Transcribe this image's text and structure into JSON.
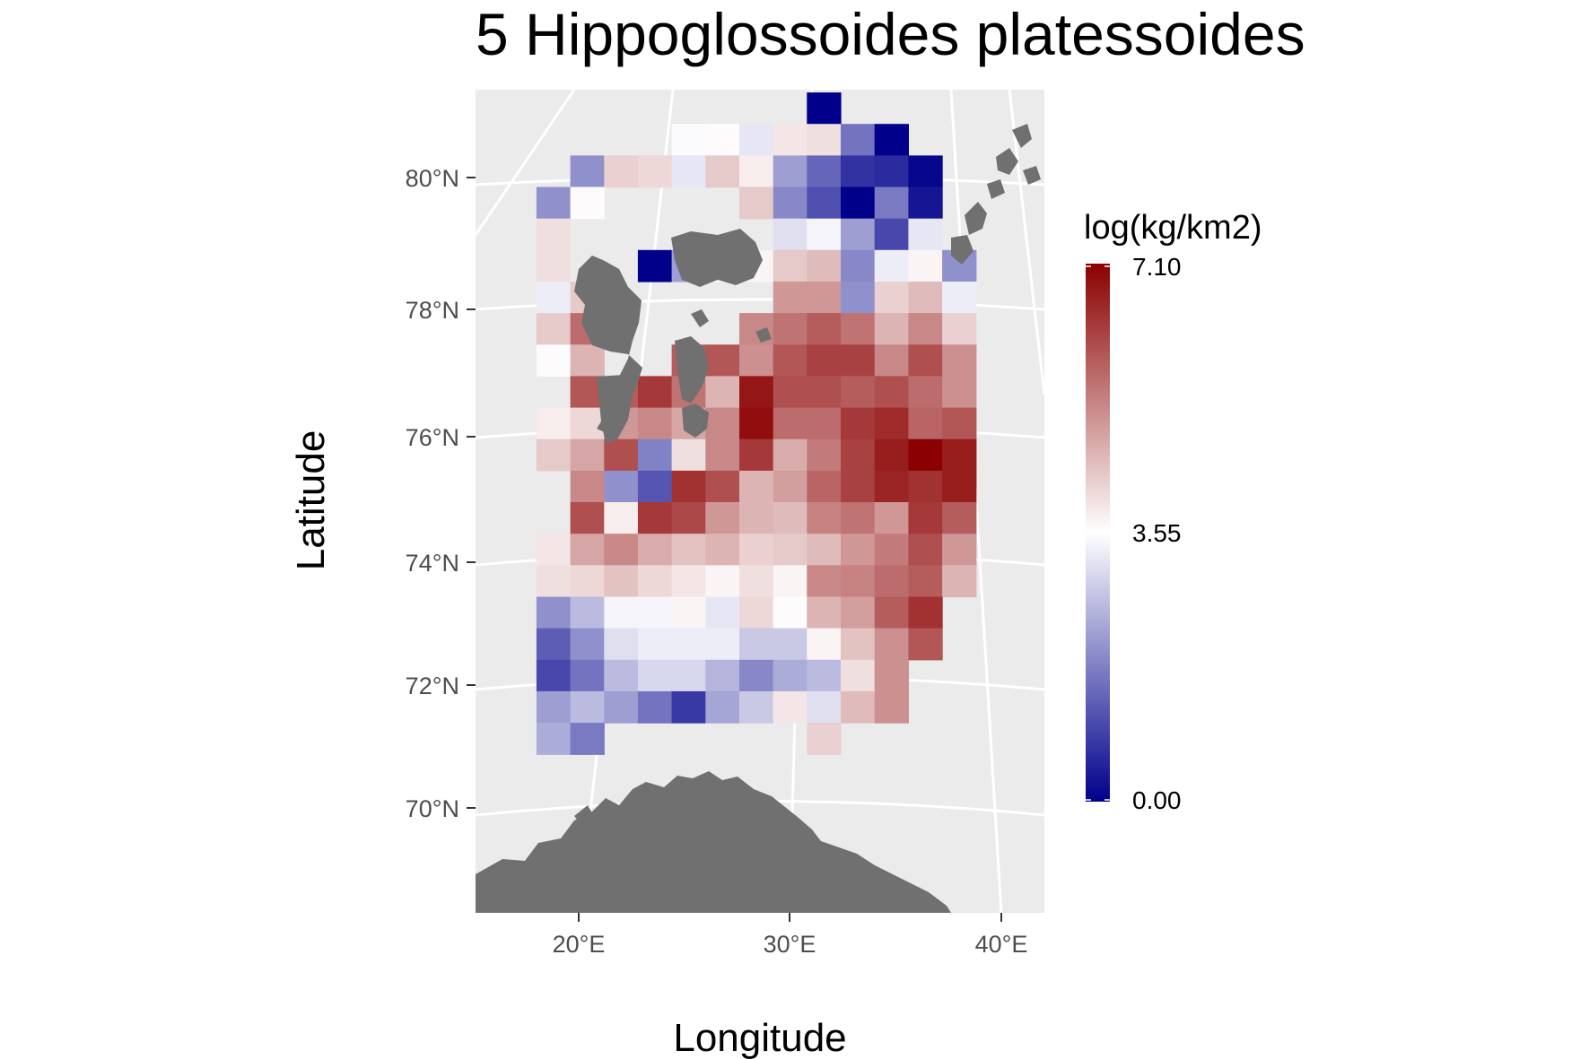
{
  "title": "5 Hippoglossoides platessoides",
  "x_axis_title": "Longitude",
  "y_axis_title": "Latitude",
  "x_ticks": [
    "20°E",
    "30°E",
    "40°E"
  ],
  "y_ticks": [
    "80°N",
    "78°N",
    "76°N",
    "74°N",
    "72°N",
    "70°N"
  ],
  "legend": {
    "title": "log(kg/km2)",
    "labels": [
      "7.10",
      "3.55",
      "0.00"
    ],
    "values": [
      7.1,
      3.55,
      0.0
    ],
    "color_low": "#00008B",
    "color_mid": "#FFFFFF",
    "color_high": "#8B0000"
  },
  "colors": {
    "panel_background": "#EBEBEB",
    "graticule": "#FFFFFF",
    "land": "#707070"
  },
  "chart_data": {
    "type": "heatmap",
    "title": "5 Hippoglossoides platessoides",
    "xlabel": "Longitude",
    "ylabel": "Latitude",
    "value_range": [
      0.0,
      7.1
    ],
    "lon_step": 1.6,
    "lat_step": 0.5,
    "cells": [
      [
        31.6,
        81.1,
        0.0
      ],
      [
        25.2,
        80.6,
        3.5
      ],
      [
        26.8,
        80.6,
        3.6
      ],
      [
        28.4,
        80.6,
        3.2
      ],
      [
        30.0,
        80.6,
        3.9
      ],
      [
        31.6,
        80.6,
        4.0
      ],
      [
        33.2,
        80.6,
        1.6
      ],
      [
        34.8,
        80.6,
        0.0
      ],
      [
        20.4,
        80.1,
        2.0
      ],
      [
        22.0,
        80.1,
        4.2
      ],
      [
        23.6,
        80.1,
        4.1
      ],
      [
        25.2,
        80.1,
        3.2
      ],
      [
        26.8,
        80.1,
        4.3
      ],
      [
        28.4,
        80.1,
        3.8
      ],
      [
        30.0,
        80.1,
        2.2
      ],
      [
        31.6,
        80.1,
        1.4
      ],
      [
        33.2,
        80.1,
        0.7
      ],
      [
        34.8,
        80.1,
        0.6
      ],
      [
        36.4,
        80.1,
        0.1
      ],
      [
        18.8,
        79.6,
        2.0
      ],
      [
        20.4,
        79.6,
        3.6
      ],
      [
        28.4,
        79.6,
        4.3
      ],
      [
        30.0,
        79.6,
        1.9
      ],
      [
        31.6,
        79.6,
        1.1
      ],
      [
        33.2,
        79.6,
        0.0
      ],
      [
        34.8,
        79.6,
        1.7
      ],
      [
        36.4,
        79.6,
        0.3
      ],
      [
        18.8,
        79.1,
        4.0
      ],
      [
        30.0,
        79.1,
        3.1
      ],
      [
        31.6,
        79.1,
        3.4
      ],
      [
        33.2,
        79.1,
        2.2
      ],
      [
        34.8,
        79.1,
        1.0
      ],
      [
        36.4,
        79.1,
        3.2
      ],
      [
        18.8,
        78.6,
        4.0
      ],
      [
        23.6,
        78.6,
        0.0
      ],
      [
        25.2,
        78.6,
        2.2
      ],
      [
        26.8,
        78.6,
        3.5
      ],
      [
        28.4,
        78.6,
        3.7
      ],
      [
        30.0,
        78.6,
        4.3
      ],
      [
        31.6,
        78.6,
        4.5
      ],
      [
        33.2,
        78.6,
        1.9
      ],
      [
        34.8,
        78.6,
        3.3
      ],
      [
        36.4,
        78.6,
        3.7
      ],
      [
        38.0,
        78.6,
        2.0
      ],
      [
        18.8,
        78.1,
        3.3
      ],
      [
        20.4,
        78.1,
        4.3
      ],
      [
        30.0,
        78.1,
        5.0
      ],
      [
        31.6,
        78.1,
        5.0
      ],
      [
        33.2,
        78.1,
        2.0
      ],
      [
        34.8,
        78.1,
        4.2
      ],
      [
        36.4,
        78.1,
        4.5
      ],
      [
        38.0,
        78.1,
        3.3
      ],
      [
        18.8,
        77.6,
        4.3
      ],
      [
        20.4,
        77.6,
        5.6
      ],
      [
        28.4,
        77.6,
        5.2
      ],
      [
        30.0,
        77.6,
        5.5
      ],
      [
        31.6,
        77.6,
        5.8
      ],
      [
        33.2,
        77.6,
        5.5
      ],
      [
        34.8,
        77.6,
        4.6
      ],
      [
        36.4,
        77.6,
        5.2
      ],
      [
        38.0,
        77.6,
        4.2
      ],
      [
        18.8,
        77.1,
        3.6
      ],
      [
        20.4,
        77.1,
        4.6
      ],
      [
        25.2,
        77.1,
        5.8
      ],
      [
        26.8,
        77.1,
        5.9
      ],
      [
        28.4,
        77.1,
        5.1
      ],
      [
        30.0,
        77.1,
        5.9
      ],
      [
        31.6,
        77.1,
        6.2
      ],
      [
        33.2,
        77.1,
        6.2
      ],
      [
        34.8,
        77.1,
        5.2
      ],
      [
        36.4,
        77.1,
        6.0
      ],
      [
        38.0,
        77.1,
        5.1
      ],
      [
        20.4,
        76.6,
        5.9
      ],
      [
        22.0,
        76.6,
        5.8
      ],
      [
        23.6,
        76.6,
        6.3
      ],
      [
        25.2,
        76.6,
        5.5
      ],
      [
        26.8,
        76.6,
        4.6
      ],
      [
        28.4,
        76.6,
        6.8
      ],
      [
        30.0,
        76.6,
        6.0
      ],
      [
        31.6,
        76.6,
        6.0
      ],
      [
        33.2,
        76.6,
        5.8
      ],
      [
        34.8,
        76.6,
        6.0
      ],
      [
        36.4,
        76.6,
        5.6
      ],
      [
        38.0,
        76.6,
        5.1
      ],
      [
        18.8,
        76.1,
        3.8
      ],
      [
        20.4,
        76.1,
        4.1
      ],
      [
        22.0,
        76.1,
        5.0
      ],
      [
        23.6,
        76.1,
        5.2
      ],
      [
        25.2,
        76.1,
        4.8
      ],
      [
        26.8,
        76.1,
        5.2
      ],
      [
        28.4,
        76.1,
        6.9
      ],
      [
        30.0,
        76.1,
        5.6
      ],
      [
        31.6,
        76.1,
        5.6
      ],
      [
        33.2,
        76.1,
        6.3
      ],
      [
        34.8,
        76.1,
        6.5
      ],
      [
        36.4,
        76.1,
        5.7
      ],
      [
        38.0,
        76.1,
        5.9
      ],
      [
        18.8,
        75.6,
        4.3
      ],
      [
        20.4,
        75.6,
        4.8
      ],
      [
        22.0,
        75.6,
        6.0
      ],
      [
        23.6,
        75.6,
        1.8
      ],
      [
        25.2,
        75.6,
        4.0
      ],
      [
        26.8,
        75.6,
        5.2
      ],
      [
        28.4,
        75.6,
        6.3
      ],
      [
        30.0,
        75.6,
        4.7
      ],
      [
        31.6,
        75.6,
        5.4
      ],
      [
        33.2,
        75.6,
        6.2
      ],
      [
        34.8,
        75.6,
        6.7
      ],
      [
        36.4,
        75.6,
        7.1
      ],
      [
        38.0,
        75.6,
        6.7
      ],
      [
        20.4,
        75.1,
        5.2
      ],
      [
        22.0,
        75.1,
        2.0
      ],
      [
        23.6,
        75.1,
        1.2
      ],
      [
        25.2,
        75.1,
        6.4
      ],
      [
        26.8,
        75.1,
        6.0
      ],
      [
        28.4,
        75.1,
        4.6
      ],
      [
        30.0,
        75.1,
        4.9
      ],
      [
        31.6,
        75.1,
        5.7
      ],
      [
        33.2,
        75.1,
        6.2
      ],
      [
        34.8,
        75.1,
        6.6
      ],
      [
        36.4,
        75.1,
        6.4
      ],
      [
        38.0,
        75.1,
        6.7
      ],
      [
        20.4,
        74.6,
        6.0
      ],
      [
        22.0,
        74.6,
        3.8
      ],
      [
        23.6,
        74.6,
        6.3
      ],
      [
        25.2,
        74.6,
        6.1
      ],
      [
        26.8,
        74.6,
        5.0
      ],
      [
        28.4,
        74.6,
        4.6
      ],
      [
        30.0,
        74.6,
        4.5
      ],
      [
        31.6,
        74.6,
        5.3
      ],
      [
        33.2,
        74.6,
        5.5
      ],
      [
        34.8,
        74.6,
        5.0
      ],
      [
        36.4,
        74.6,
        6.3
      ],
      [
        38.0,
        74.6,
        5.8
      ],
      [
        18.8,
        74.1,
        3.9
      ],
      [
        20.4,
        74.1,
        4.8
      ],
      [
        22.0,
        74.1,
        5.2
      ],
      [
        23.6,
        74.1,
        4.7
      ],
      [
        25.2,
        74.1,
        4.4
      ],
      [
        26.8,
        74.1,
        4.6
      ],
      [
        28.4,
        74.1,
        4.2
      ],
      [
        30.0,
        74.1,
        4.3
      ],
      [
        31.6,
        74.1,
        4.5
      ],
      [
        33.2,
        74.1,
        5.0
      ],
      [
        34.8,
        74.1,
        5.4
      ],
      [
        36.4,
        74.1,
        6.0
      ],
      [
        38.0,
        74.1,
        5.0
      ],
      [
        18.8,
        73.6,
        4.0
      ],
      [
        20.4,
        73.6,
        4.1
      ],
      [
        22.0,
        73.6,
        4.4
      ],
      [
        23.6,
        73.6,
        4.1
      ],
      [
        25.2,
        73.6,
        3.9
      ],
      [
        26.8,
        73.6,
        3.7
      ],
      [
        28.4,
        73.6,
        4.0
      ],
      [
        30.0,
        73.6,
        3.7
      ],
      [
        31.6,
        73.6,
        5.2
      ],
      [
        33.2,
        73.6,
        5.3
      ],
      [
        34.8,
        73.6,
        5.6
      ],
      [
        36.4,
        73.6,
        5.8
      ],
      [
        38.0,
        73.6,
        4.6
      ],
      [
        18.8,
        73.1,
        2.0
      ],
      [
        20.4,
        73.1,
        2.6
      ],
      [
        22.0,
        73.1,
        3.4
      ],
      [
        23.6,
        73.1,
        3.4
      ],
      [
        25.2,
        73.1,
        3.7
      ],
      [
        26.8,
        73.1,
        3.2
      ],
      [
        28.4,
        73.1,
        4.1
      ],
      [
        30.0,
        73.1,
        3.6
      ],
      [
        31.6,
        73.1,
        4.6
      ],
      [
        33.2,
        73.1,
        4.9
      ],
      [
        34.8,
        73.1,
        5.8
      ],
      [
        36.4,
        73.1,
        6.4
      ],
      [
        18.8,
        72.6,
        1.3
      ],
      [
        20.4,
        72.6,
        2.0
      ],
      [
        22.0,
        72.6,
        3.1
      ],
      [
        23.6,
        72.6,
        3.3
      ],
      [
        25.2,
        72.6,
        3.3
      ],
      [
        26.8,
        72.6,
        3.3
      ],
      [
        28.4,
        72.6,
        2.8
      ],
      [
        30.0,
        72.6,
        2.8
      ],
      [
        31.6,
        72.6,
        3.7
      ],
      [
        33.2,
        72.6,
        4.4
      ],
      [
        34.8,
        72.6,
        5.1
      ],
      [
        36.4,
        72.6,
        5.9
      ],
      [
        18.8,
        72.1,
        1.0
      ],
      [
        20.4,
        72.1,
        1.6
      ],
      [
        22.0,
        72.1,
        2.6
      ],
      [
        23.6,
        72.1,
        3.0
      ],
      [
        25.2,
        72.1,
        3.0
      ],
      [
        26.8,
        72.1,
        2.5
      ],
      [
        28.4,
        72.1,
        1.9
      ],
      [
        30.0,
        72.1,
        2.4
      ],
      [
        31.6,
        72.1,
        2.6
      ],
      [
        33.2,
        72.1,
        4.0
      ],
      [
        34.8,
        72.1,
        5.1
      ],
      [
        18.8,
        71.6,
        2.2
      ],
      [
        20.4,
        71.6,
        2.6
      ],
      [
        22.0,
        71.6,
        2.2
      ],
      [
        23.6,
        71.6,
        1.6
      ],
      [
        25.2,
        71.6,
        0.8
      ],
      [
        26.8,
        71.6,
        2.3
      ],
      [
        28.4,
        71.6,
        2.8
      ],
      [
        30.0,
        71.6,
        3.9
      ],
      [
        31.6,
        71.6,
        3.1
      ],
      [
        33.2,
        71.6,
        4.5
      ],
      [
        34.8,
        71.6,
        5.1
      ],
      [
        18.8,
        71.1,
        2.4
      ],
      [
        20.4,
        71.1,
        1.7
      ],
      [
        31.6,
        71.1,
        4.2
      ]
    ]
  }
}
